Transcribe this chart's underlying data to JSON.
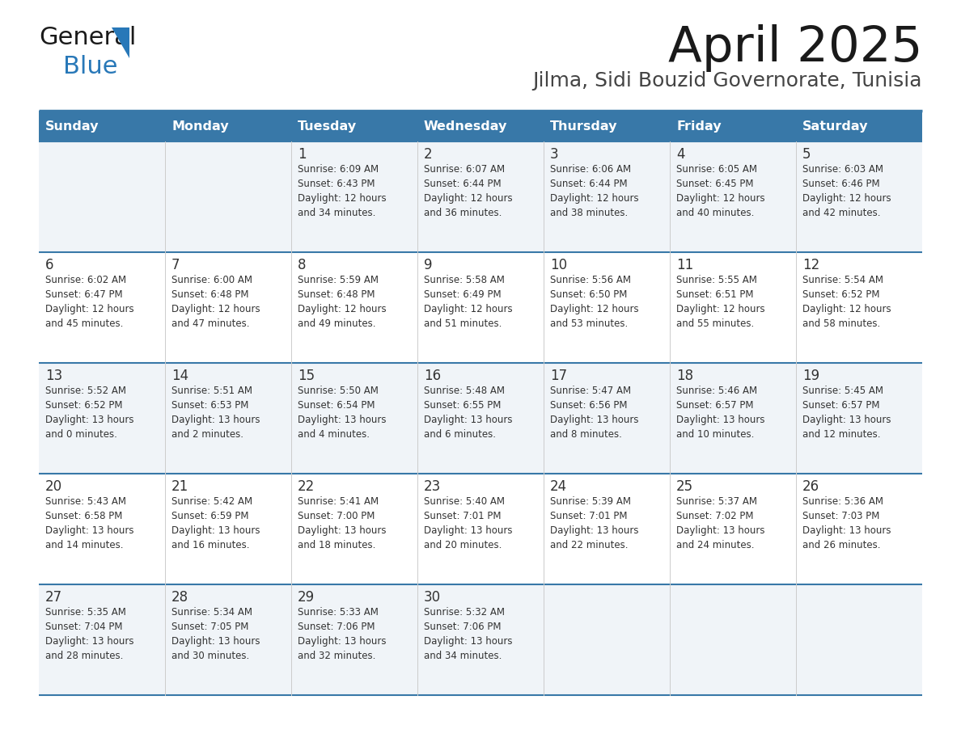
{
  "title": "April 2025",
  "subtitle": "Jilma, Sidi Bouzid Governorate, Tunisia",
  "header_bg_color": "#3878a8",
  "header_text_color": "#ffffff",
  "row_bg_colors": [
    "#f0f4f8",
    "#ffffff"
  ],
  "divider_color": "#3878a8",
  "text_color": "#333333",
  "day_names": [
    "Sunday",
    "Monday",
    "Tuesday",
    "Wednesday",
    "Thursday",
    "Friday",
    "Saturday"
  ],
  "weeks": [
    [
      {
        "day": null,
        "info": null
      },
      {
        "day": null,
        "info": null
      },
      {
        "day": 1,
        "info": "Sunrise: 6:09 AM\nSunset: 6:43 PM\nDaylight: 12 hours\nand 34 minutes."
      },
      {
        "day": 2,
        "info": "Sunrise: 6:07 AM\nSunset: 6:44 PM\nDaylight: 12 hours\nand 36 minutes."
      },
      {
        "day": 3,
        "info": "Sunrise: 6:06 AM\nSunset: 6:44 PM\nDaylight: 12 hours\nand 38 minutes."
      },
      {
        "day": 4,
        "info": "Sunrise: 6:05 AM\nSunset: 6:45 PM\nDaylight: 12 hours\nand 40 minutes."
      },
      {
        "day": 5,
        "info": "Sunrise: 6:03 AM\nSunset: 6:46 PM\nDaylight: 12 hours\nand 42 minutes."
      }
    ],
    [
      {
        "day": 6,
        "info": "Sunrise: 6:02 AM\nSunset: 6:47 PM\nDaylight: 12 hours\nand 45 minutes."
      },
      {
        "day": 7,
        "info": "Sunrise: 6:00 AM\nSunset: 6:48 PM\nDaylight: 12 hours\nand 47 minutes."
      },
      {
        "day": 8,
        "info": "Sunrise: 5:59 AM\nSunset: 6:48 PM\nDaylight: 12 hours\nand 49 minutes."
      },
      {
        "day": 9,
        "info": "Sunrise: 5:58 AM\nSunset: 6:49 PM\nDaylight: 12 hours\nand 51 minutes."
      },
      {
        "day": 10,
        "info": "Sunrise: 5:56 AM\nSunset: 6:50 PM\nDaylight: 12 hours\nand 53 minutes."
      },
      {
        "day": 11,
        "info": "Sunrise: 5:55 AM\nSunset: 6:51 PM\nDaylight: 12 hours\nand 55 minutes."
      },
      {
        "day": 12,
        "info": "Sunrise: 5:54 AM\nSunset: 6:52 PM\nDaylight: 12 hours\nand 58 minutes."
      }
    ],
    [
      {
        "day": 13,
        "info": "Sunrise: 5:52 AM\nSunset: 6:52 PM\nDaylight: 13 hours\nand 0 minutes."
      },
      {
        "day": 14,
        "info": "Sunrise: 5:51 AM\nSunset: 6:53 PM\nDaylight: 13 hours\nand 2 minutes."
      },
      {
        "day": 15,
        "info": "Sunrise: 5:50 AM\nSunset: 6:54 PM\nDaylight: 13 hours\nand 4 minutes."
      },
      {
        "day": 16,
        "info": "Sunrise: 5:48 AM\nSunset: 6:55 PM\nDaylight: 13 hours\nand 6 minutes."
      },
      {
        "day": 17,
        "info": "Sunrise: 5:47 AM\nSunset: 6:56 PM\nDaylight: 13 hours\nand 8 minutes."
      },
      {
        "day": 18,
        "info": "Sunrise: 5:46 AM\nSunset: 6:57 PM\nDaylight: 13 hours\nand 10 minutes."
      },
      {
        "day": 19,
        "info": "Sunrise: 5:45 AM\nSunset: 6:57 PM\nDaylight: 13 hours\nand 12 minutes."
      }
    ],
    [
      {
        "day": 20,
        "info": "Sunrise: 5:43 AM\nSunset: 6:58 PM\nDaylight: 13 hours\nand 14 minutes."
      },
      {
        "day": 21,
        "info": "Sunrise: 5:42 AM\nSunset: 6:59 PM\nDaylight: 13 hours\nand 16 minutes."
      },
      {
        "day": 22,
        "info": "Sunrise: 5:41 AM\nSunset: 7:00 PM\nDaylight: 13 hours\nand 18 minutes."
      },
      {
        "day": 23,
        "info": "Sunrise: 5:40 AM\nSunset: 7:01 PM\nDaylight: 13 hours\nand 20 minutes."
      },
      {
        "day": 24,
        "info": "Sunrise: 5:39 AM\nSunset: 7:01 PM\nDaylight: 13 hours\nand 22 minutes."
      },
      {
        "day": 25,
        "info": "Sunrise: 5:37 AM\nSunset: 7:02 PM\nDaylight: 13 hours\nand 24 minutes."
      },
      {
        "day": 26,
        "info": "Sunrise: 5:36 AM\nSunset: 7:03 PM\nDaylight: 13 hours\nand 26 minutes."
      }
    ],
    [
      {
        "day": 27,
        "info": "Sunrise: 5:35 AM\nSunset: 7:04 PM\nDaylight: 13 hours\nand 28 minutes."
      },
      {
        "day": 28,
        "info": "Sunrise: 5:34 AM\nSunset: 7:05 PM\nDaylight: 13 hours\nand 30 minutes."
      },
      {
        "day": 29,
        "info": "Sunrise: 5:33 AM\nSunset: 7:06 PM\nDaylight: 13 hours\nand 32 minutes."
      },
      {
        "day": 30,
        "info": "Sunrise: 5:32 AM\nSunset: 7:06 PM\nDaylight: 13 hours\nand 34 minutes."
      },
      {
        "day": null,
        "info": null
      },
      {
        "day": null,
        "info": null
      },
      {
        "day": null,
        "info": null
      }
    ]
  ],
  "logo_general_color": "#1a1a1a",
  "logo_blue_color": "#2878b8",
  "logo_triangle_color": "#2878b8",
  "title_color": "#1a1a1a",
  "subtitle_color": "#444444"
}
